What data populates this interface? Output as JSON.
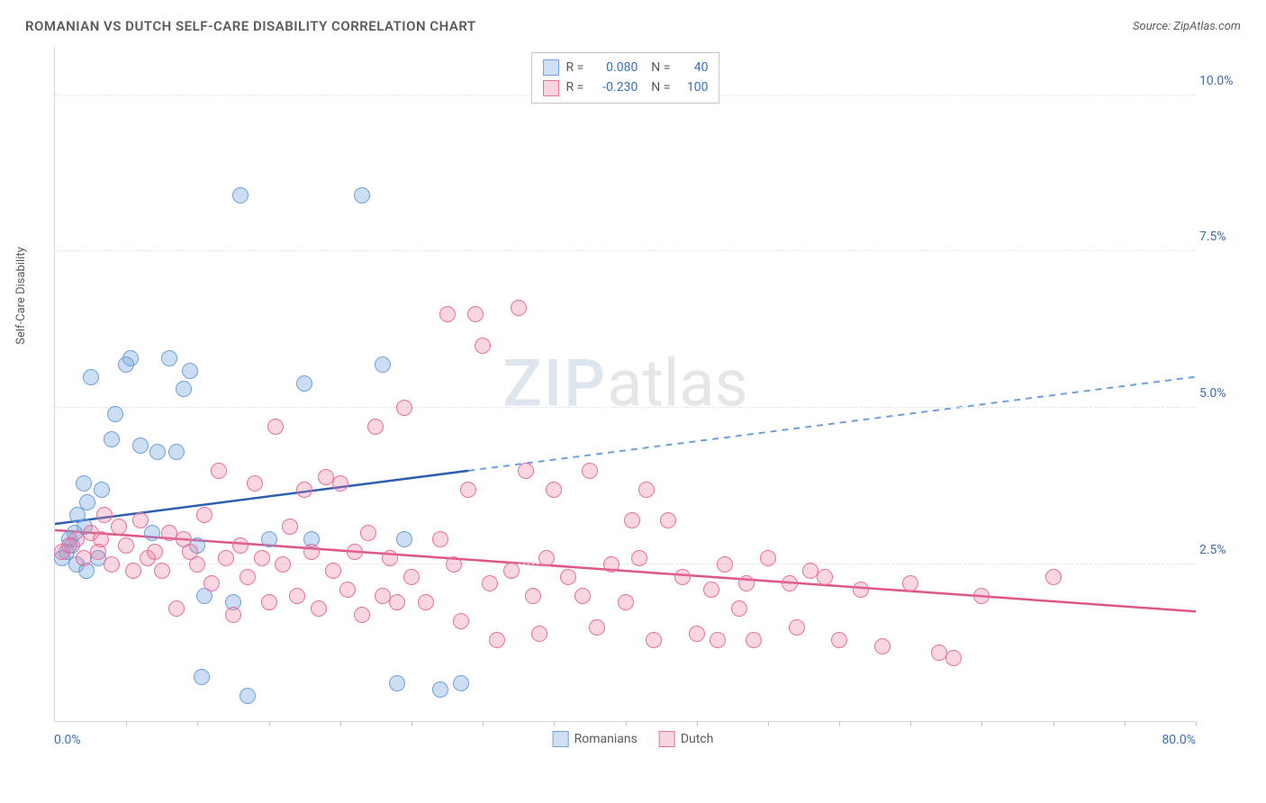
{
  "title": "ROMANIAN VS DUTCH SELF-CARE DISABILITY CORRELATION CHART",
  "source": "Source: ZipAtlas.com",
  "ylabel": "Self-Care Disability",
  "watermark_zip": "ZIP",
  "watermark_atlas": "atlas",
  "xlim": [
    0,
    80
  ],
  "ylim": [
    0,
    10.8
  ],
  "x_axis_left": "0.0%",
  "x_axis_right": "80.0%",
  "y_ticks": [
    {
      "v": 2.5,
      "label": "2.5%"
    },
    {
      "v": 5.0,
      "label": "5.0%"
    },
    {
      "v": 7.5,
      "label": "7.5%"
    },
    {
      "v": 10.0,
      "label": "10.0%"
    }
  ],
  "x_tick_positions": [
    5,
    10,
    15,
    20,
    25,
    30,
    35,
    40,
    45,
    50,
    55,
    60,
    65,
    70,
    75,
    80
  ],
  "grid_color": "#e5e5e5",
  "background_color": "#ffffff",
  "series": [
    {
      "name": "Romanians",
      "color_fill": "rgba(110,160,220,0.35)",
      "color_stroke": "#6ea0dc",
      "marker_radius": 9,
      "swatch_fill": "#cfe0f4",
      "swatch_border": "#6ea0dc",
      "R": "0.080",
      "N": "40",
      "trend": {
        "x1": 0,
        "y1": 3.15,
        "x2": 29,
        "y2": 4.0,
        "x3": 80,
        "y3": 5.5,
        "solid_color": "#2b5fb0",
        "dash_color": "#6ea0dc",
        "width": 2.5
      },
      "points": [
        [
          0.5,
          2.6
        ],
        [
          0.8,
          2.7
        ],
        [
          1.0,
          2.9
        ],
        [
          1.2,
          2.8
        ],
        [
          1.4,
          3.0
        ],
        [
          1.5,
          2.5
        ],
        [
          1.6,
          3.3
        ],
        [
          2.0,
          3.8
        ],
        [
          2.1,
          3.1
        ],
        [
          2.2,
          2.4
        ],
        [
          2.3,
          3.5
        ],
        [
          2.5,
          5.5
        ],
        [
          3.0,
          2.6
        ],
        [
          3.3,
          3.7
        ],
        [
          4.0,
          4.5
        ],
        [
          4.2,
          4.9
        ],
        [
          5.0,
          5.7
        ],
        [
          5.3,
          5.8
        ],
        [
          6.0,
          4.4
        ],
        [
          6.8,
          3.0
        ],
        [
          7.2,
          4.3
        ],
        [
          8.0,
          5.8
        ],
        [
          8.5,
          4.3
        ],
        [
          9.0,
          5.3
        ],
        [
          9.5,
          5.6
        ],
        [
          10.0,
          2.8
        ],
        [
          10.3,
          0.7
        ],
        [
          10.5,
          2.0
        ],
        [
          12.5,
          1.9
        ],
        [
          13.0,
          8.4
        ],
        [
          13.5,
          0.4
        ],
        [
          15.0,
          2.9
        ],
        [
          17.5,
          5.4
        ],
        [
          18.0,
          2.9
        ],
        [
          21.5,
          8.4
        ],
        [
          23.0,
          5.7
        ],
        [
          24.0,
          0.6
        ],
        [
          24.5,
          2.9
        ],
        [
          27.0,
          0.5
        ],
        [
          28.5,
          0.6
        ]
      ]
    },
    {
      "name": "Dutch",
      "color_fill": "rgba(235,120,160,0.30)",
      "color_stroke": "#e96f9c",
      "marker_radius": 9,
      "swatch_fill": "#f9d4e1",
      "swatch_border": "#e96f9c",
      "R": "-0.230",
      "N": "100",
      "trend": {
        "x1": 0,
        "y1": 3.05,
        "x2": 80,
        "y2": 1.75,
        "solid_color": "#e05588",
        "width": 2.5
      },
      "points": [
        [
          0.5,
          2.7
        ],
        [
          1.0,
          2.8
        ],
        [
          1.5,
          2.9
        ],
        [
          2.0,
          2.6
        ],
        [
          2.5,
          3.0
        ],
        [
          3.0,
          2.7
        ],
        [
          3.2,
          2.9
        ],
        [
          3.5,
          3.3
        ],
        [
          4.0,
          2.5
        ],
        [
          4.5,
          3.1
        ],
        [
          5.0,
          2.8
        ],
        [
          5.5,
          2.4
        ],
        [
          6.0,
          3.2
        ],
        [
          6.5,
          2.6
        ],
        [
          7.0,
          2.7
        ],
        [
          7.5,
          2.4
        ],
        [
          8.0,
          3.0
        ],
        [
          8.5,
          1.8
        ],
        [
          9.0,
          2.9
        ],
        [
          9.5,
          2.7
        ],
        [
          10.0,
          2.5
        ],
        [
          10.5,
          3.3
        ],
        [
          11.0,
          2.2
        ],
        [
          11.5,
          4.0
        ],
        [
          12.0,
          2.6
        ],
        [
          12.5,
          1.7
        ],
        [
          13.0,
          2.8
        ],
        [
          13.5,
          2.3
        ],
        [
          14.0,
          3.8
        ],
        [
          14.5,
          2.6
        ],
        [
          15.0,
          1.9
        ],
        [
          15.5,
          4.7
        ],
        [
          16.0,
          2.5
        ],
        [
          16.5,
          3.1
        ],
        [
          17.0,
          2.0
        ],
        [
          17.5,
          3.7
        ],
        [
          18.0,
          2.7
        ],
        [
          18.5,
          1.8
        ],
        [
          19.0,
          3.9
        ],
        [
          19.5,
          2.4
        ],
        [
          20.0,
          3.8
        ],
        [
          20.5,
          2.1
        ],
        [
          21.0,
          2.7
        ],
        [
          21.5,
          1.7
        ],
        [
          22.0,
          3.0
        ],
        [
          22.5,
          4.7
        ],
        [
          23.0,
          2.0
        ],
        [
          23.5,
          2.6
        ],
        [
          24.0,
          1.9
        ],
        [
          24.5,
          5.0
        ],
        [
          25.0,
          2.3
        ],
        [
          26.0,
          1.9
        ],
        [
          27.0,
          2.9
        ],
        [
          27.5,
          6.5
        ],
        [
          28.0,
          2.5
        ],
        [
          28.5,
          1.6
        ],
        [
          29.0,
          3.7
        ],
        [
          29.5,
          6.5
        ],
        [
          30.0,
          6.0
        ],
        [
          30.5,
          2.2
        ],
        [
          31.0,
          1.3
        ],
        [
          32.0,
          2.4
        ],
        [
          32.5,
          6.6
        ],
        [
          33.0,
          4.0
        ],
        [
          33.5,
          2.0
        ],
        [
          34.0,
          1.4
        ],
        [
          34.5,
          2.6
        ],
        [
          35.0,
          3.7
        ],
        [
          36.0,
          2.3
        ],
        [
          37.0,
          2.0
        ],
        [
          37.5,
          4.0
        ],
        [
          38.0,
          1.5
        ],
        [
          39.0,
          2.5
        ],
        [
          40.0,
          1.9
        ],
        [
          40.5,
          3.2
        ],
        [
          41.0,
          2.6
        ],
        [
          41.5,
          3.7
        ],
        [
          42.0,
          1.3
        ],
        [
          43.0,
          3.2
        ],
        [
          44.0,
          2.3
        ],
        [
          45.0,
          1.4
        ],
        [
          46.0,
          2.1
        ],
        [
          46.5,
          1.3
        ],
        [
          47.0,
          2.5
        ],
        [
          48.0,
          1.8
        ],
        [
          48.5,
          2.2
        ],
        [
          49.0,
          1.3
        ],
        [
          50.0,
          2.6
        ],
        [
          51.5,
          2.2
        ],
        [
          52.0,
          1.5
        ],
        [
          53.0,
          2.4
        ],
        [
          54.0,
          2.3
        ],
        [
          55.0,
          1.3
        ],
        [
          56.5,
          2.1
        ],
        [
          58.0,
          1.2
        ],
        [
          60.0,
          2.2
        ],
        [
          62.0,
          1.1
        ],
        [
          63.0,
          1.0
        ],
        [
          65.0,
          2.0
        ],
        [
          70.0,
          2.3
        ]
      ]
    }
  ],
  "legend_items": [
    "Romanians",
    "Dutch"
  ]
}
